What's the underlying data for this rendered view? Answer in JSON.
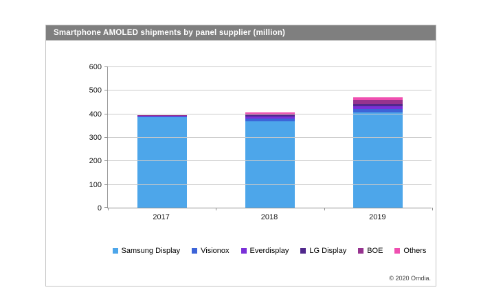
{
  "title": "Smartphone AMOLED shipments by panel supplier (million)",
  "footer": "© 2020 Omdia.",
  "chart_data": {
    "type": "bar",
    "stacked": true,
    "title": "Smartphone AMOLED shipments by panel supplier (million)",
    "xlabel": "",
    "ylabel": "",
    "categories": [
      "2017",
      "2018",
      "2019"
    ],
    "series": [
      {
        "name": "Samsung Display",
        "color": "#4da6ea",
        "values": [
          385,
          368,
          405
        ]
      },
      {
        "name": "Visionox",
        "color": "#3d64d8",
        "values": [
          2,
          11,
          14
        ]
      },
      {
        "name": "Everdisplay",
        "color": "#7a30d8",
        "values": [
          3,
          8,
          11
        ]
      },
      {
        "name": "LG Display",
        "color": "#50288c",
        "values": [
          1,
          5,
          10
        ]
      },
      {
        "name": "BOE",
        "color": "#96338f",
        "values": [
          1,
          7,
          17
        ]
      },
      {
        "name": "Others",
        "color": "#ef4fb0",
        "values": [
          1,
          6,
          13
        ]
      }
    ],
    "totals": [
      393,
      405,
      470
    ],
    "ylim": [
      0,
      600
    ],
    "yticks": [
      0,
      100,
      200,
      300,
      400,
      500,
      600
    ],
    "grid": true,
    "legend_position": "bottom"
  }
}
